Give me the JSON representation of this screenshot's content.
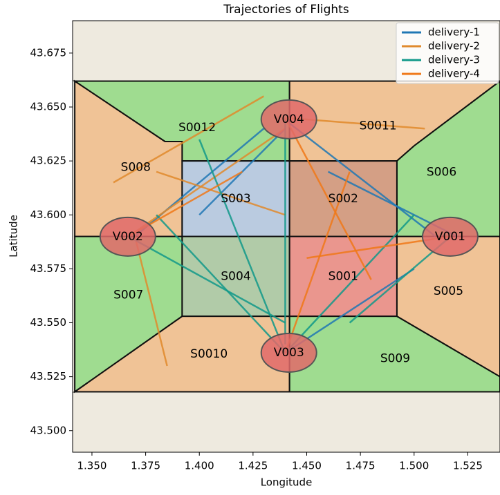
{
  "chart_data": {
    "type": "trajectory",
    "title": "Trajectories of Flights",
    "x_label": "Longitude",
    "y_label": "Latitude",
    "xlim": [
      1.341,
      1.54
    ],
    "ylim": [
      43.49,
      43.69
    ],
    "xticks": [
      {
        "value": 1.35,
        "label": "1.350"
      },
      {
        "value": 1.375,
        "label": "1.375"
      },
      {
        "value": 1.4,
        "label": "1.400"
      },
      {
        "value": 1.425,
        "label": "1.425"
      },
      {
        "value": 1.45,
        "label": "1.450"
      },
      {
        "value": 1.475,
        "label": "1.475"
      },
      {
        "value": 1.5,
        "label": "1.500"
      },
      {
        "value": 1.525,
        "label": "1.525"
      }
    ],
    "yticks": [
      {
        "value": 43.5,
        "label": "43.500"
      },
      {
        "value": 43.525,
        "label": "43.525"
      },
      {
        "value": 43.55,
        "label": "43.550"
      },
      {
        "value": 43.575,
        "label": "43.575"
      },
      {
        "value": 43.6,
        "label": "43.600"
      },
      {
        "value": 43.625,
        "label": "43.625"
      },
      {
        "value": 43.65,
        "label": "43.650"
      },
      {
        "value": 43.675,
        "label": "43.675"
      }
    ],
    "legend": "upper right",
    "sectors": [
      {
        "name": "S0012",
        "color": "#5fcf4f",
        "x": [
          1.342,
          1.442,
          1.442,
          1.392,
          1.392,
          1.384
        ],
        "y": [
          43.662,
          43.662,
          43.625,
          43.625,
          43.634,
          43.634
        ]
      },
      {
        "name": "S0011",
        "color": "#f2a35a",
        "x": [
          1.442,
          1.54,
          1.5,
          1.492,
          1.442
        ],
        "y": [
          43.662,
          43.662,
          43.632,
          43.625,
          43.625
        ]
      },
      {
        "name": "S008",
        "color": "#f2a35a",
        "x": [
          1.342,
          1.384,
          1.392,
          1.392,
          1.342
        ],
        "y": [
          43.662,
          43.634,
          43.634,
          43.59,
          43.59
        ]
      },
      {
        "name": "S006",
        "color": "#5fcf4f",
        "x": [
          1.5,
          1.54,
          1.54,
          1.492,
          1.492
        ],
        "y": [
          43.632,
          43.662,
          43.59,
          43.59,
          43.625
        ]
      },
      {
        "name": "S003",
        "color": "#8fb0e0",
        "x": [
          1.392,
          1.442,
          1.442,
          1.392
        ],
        "y": [
          43.625,
          43.625,
          43.59,
          43.59
        ]
      },
      {
        "name": "S002",
        "color": "#c0603a",
        "x": [
          1.442,
          1.492,
          1.492,
          1.442
        ],
        "y": [
          43.625,
          43.625,
          43.59,
          43.59
        ]
      },
      {
        "name": "S007",
        "color": "#5fcf4f",
        "x": [
          1.342,
          1.392,
          1.392,
          1.342
        ],
        "y": [
          43.59,
          43.59,
          43.553,
          43.518
        ]
      },
      {
        "name": "S004",
        "color": "#7fb07a",
        "x": [
          1.392,
          1.442,
          1.442,
          1.392
        ],
        "y": [
          43.59,
          43.59,
          43.553,
          43.553
        ]
      },
      {
        "name": "S001",
        "color": "#e8504a",
        "x": [
          1.442,
          1.492,
          1.492,
          1.442
        ],
        "y": [
          43.59,
          43.59,
          43.553,
          43.553
        ]
      },
      {
        "name": "S005",
        "color": "#f2a35a",
        "x": [
          1.492,
          1.54,
          1.54,
          1.492
        ],
        "y": [
          43.59,
          43.59,
          43.525,
          43.553
        ]
      },
      {
        "name": "S0010",
        "color": "#f2a35a",
        "x": [
          1.342,
          1.392,
          1.442,
          1.442
        ],
        "y": [
          43.518,
          43.553,
          43.553,
          43.518
        ]
      },
      {
        "name": "S009",
        "color": "#5fcf4f",
        "x": [
          1.442,
          1.492,
          1.54,
          1.54,
          1.442
        ],
        "y": [
          43.553,
          43.553,
          43.525,
          43.518,
          43.518
        ]
      }
    ],
    "vertiports": [
      {
        "name": "V004",
        "x": 1.4417,
        "y": 43.6443
      },
      {
        "name": "V002",
        "x": 1.3667,
        "y": 43.5899
      },
      {
        "name": "V001",
        "x": 1.5168,
        "y": 43.5899
      },
      {
        "name": "V003",
        "x": 1.4417,
        "y": 43.5361
      }
    ],
    "series": [
      {
        "name": "delivery-1",
        "color": "#1f77b4",
        "flights": [
          {
            "x": [
              1.44,
              1.51
            ],
            "y": [
              43.644,
              43.59
            ]
          },
          {
            "x": [
              1.44,
              1.4
            ],
            "y": [
              43.64,
              43.6
            ]
          },
          {
            "x": [
              1.37,
              1.43
            ],
            "y": [
              43.59,
              43.64
            ]
          },
          {
            "x": [
              1.52,
              1.46
            ],
            "y": [
              43.59,
              43.62
            ]
          },
          {
            "x": [
              1.44,
              1.5
            ],
            "y": [
              43.536,
              43.575
            ]
          }
        ]
      },
      {
        "name": "delivery-2",
        "color": "#e08a2c",
        "flights": [
          {
            "x": [
              1.367,
              1.44
            ],
            "y": [
              43.59,
              43.64
            ]
          },
          {
            "x": [
              1.36,
              1.43
            ],
            "y": [
              43.615,
              43.655
            ]
          },
          {
            "x": [
              1.44,
              1.505
            ],
            "y": [
              43.645,
              43.64
            ]
          },
          {
            "x": [
              1.37,
              1.385
            ],
            "y": [
              43.59,
              43.53
            ]
          },
          {
            "x": [
              1.38,
              1.44
            ],
            "y": [
              43.62,
              43.6
            ]
          }
        ]
      },
      {
        "name": "delivery-3",
        "color": "#12998a",
        "flights": [
          {
            "x": [
              1.44,
              1.38
            ],
            "y": [
              43.536,
              43.6
            ]
          },
          {
            "x": [
              1.44,
              1.4
            ],
            "y": [
              43.536,
              43.635
            ]
          },
          {
            "x": [
              1.44,
              1.5
            ],
            "y": [
              43.536,
              43.6
            ]
          },
          {
            "x": [
              1.517,
              1.47
            ],
            "y": [
              43.59,
              43.55
            ]
          },
          {
            "x": [
              1.367,
              1.44
            ],
            "y": [
              43.59,
              43.55
            ]
          },
          {
            "x": [
              1.44,
              1.44
            ],
            "y": [
              43.645,
              43.54
            ]
          }
        ]
      },
      {
        "name": "delivery-4",
        "color": "#f07818",
        "flights": [
          {
            "x": [
              1.44,
              1.47
            ],
            "y": [
              43.536,
              43.62
            ]
          },
          {
            "x": [
              1.517,
              1.45
            ],
            "y": [
              43.59,
              43.58
            ]
          },
          {
            "x": [
              1.44,
              1.48
            ],
            "y": [
              43.645,
              43.57
            ]
          },
          {
            "x": [
              1.367,
              1.42
            ],
            "y": [
              43.59,
              43.62
            ]
          }
        ]
      }
    ]
  }
}
